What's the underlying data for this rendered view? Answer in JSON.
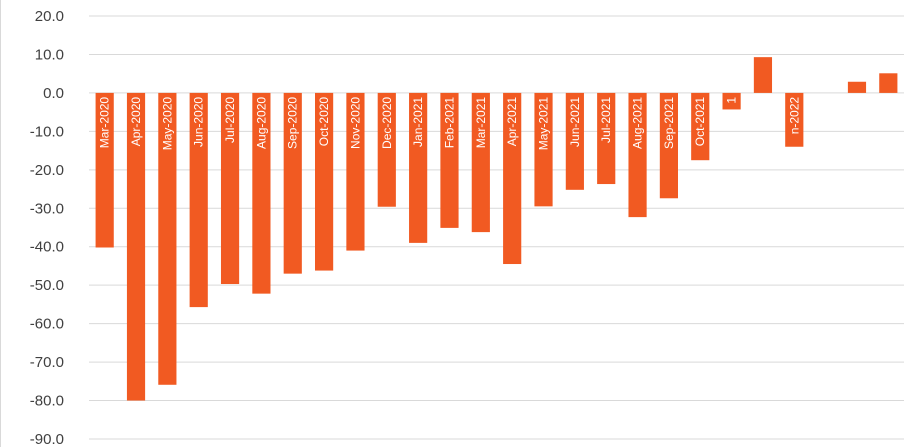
{
  "chart_data": {
    "type": "bar",
    "categories": [
      "Mar-2020",
      "Apr-2020",
      "May-2020",
      "Jun-2020",
      "Jul-2020",
      "Aug-2020",
      "Sep-2020",
      "Oct-2020",
      "Nov-2020",
      "Dec-2020",
      "Jan-2021",
      "Feb-2021",
      "Mar-2021",
      "Apr-2021",
      "May-2021",
      "Jun-2021",
      "Jul-2021",
      "Aug-2021",
      "Sep-2021",
      "Oct-2021",
      "1",
      "",
      "n-2022",
      "",
      "",
      ""
    ],
    "values": [
      -40.2,
      -80.0,
      -75.9,
      -55.7,
      -49.7,
      -52.2,
      -47.0,
      -46.2,
      -41.0,
      -29.6,
      -39.0,
      -35.1,
      -36.2,
      -44.5,
      -29.5,
      -25.2,
      -23.7,
      -32.3,
      -27.4,
      -17.5,
      -4.3,
      9.3,
      -14.0,
      0.0,
      2.9,
      5.1
    ],
    "ylim": [
      -90,
      20
    ],
    "yticks": [
      20,
      10,
      0,
      -10,
      -20,
      -30,
      -40,
      -50,
      -60,
      -70,
      -80,
      -90
    ],
    "ytick_labels": [
      "20.0",
      "10.0",
      "0.0",
      "-10.0",
      "-20.0",
      "-30.0",
      "-40.0",
      "-50.0",
      "-60.0",
      "-70.0",
      "-80.0",
      "-90.0"
    ],
    "grid": true,
    "title": "",
    "xlabel": "",
    "ylabel": "",
    "colors": {
      "bar": "#F15A22",
      "grid": "#d9d9d9",
      "tick_text": "#404040",
      "category_text": "#ffffff"
    }
  }
}
